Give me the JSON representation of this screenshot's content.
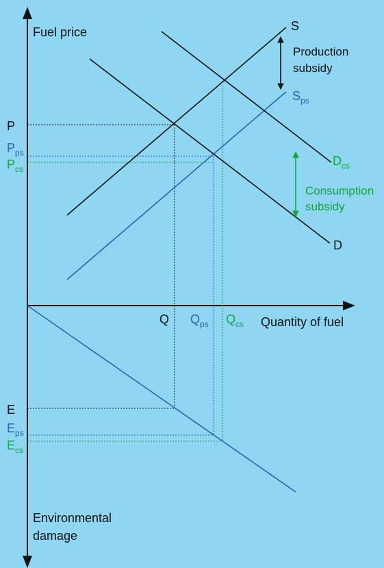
{
  "diagram": {
    "axis_labels": {
      "y_top": "Fuel price",
      "x_right": "Quantity of fuel",
      "y_bottom_line1": "Environmental",
      "y_bottom_line2": "damage"
    },
    "curve_labels": {
      "supply": "S",
      "supply_ps": {
        "main": "S",
        "sub": "ps"
      },
      "demand": "D",
      "demand_cs": {
        "main": "D",
        "sub": "cs"
      }
    },
    "subsidy_labels": {
      "production_line1": "Production",
      "production_line2": "subsidy",
      "consumption_line1": "Consumption",
      "consumption_line2": "subsidy"
    },
    "price_labels": {
      "p": "P",
      "p_ps": {
        "main": "P",
        "sub": "ps"
      },
      "p_cs": {
        "main": "P",
        "sub": "cs"
      }
    },
    "quantity_labels": {
      "q": "Q",
      "q_ps": {
        "main": "Q",
        "sub": "ps"
      },
      "q_cs": {
        "main": "Q",
        "sub": "cs"
      }
    },
    "damage_labels": {
      "e": "E",
      "e_ps": {
        "main": "E",
        "sub": "ps"
      },
      "e_cs": {
        "main": "E",
        "sub": "cs"
      }
    },
    "colors": {
      "background": "#8fd6f3",
      "black": "#111111",
      "blue": "#2466b2",
      "green": "#11a83a"
    }
  }
}
